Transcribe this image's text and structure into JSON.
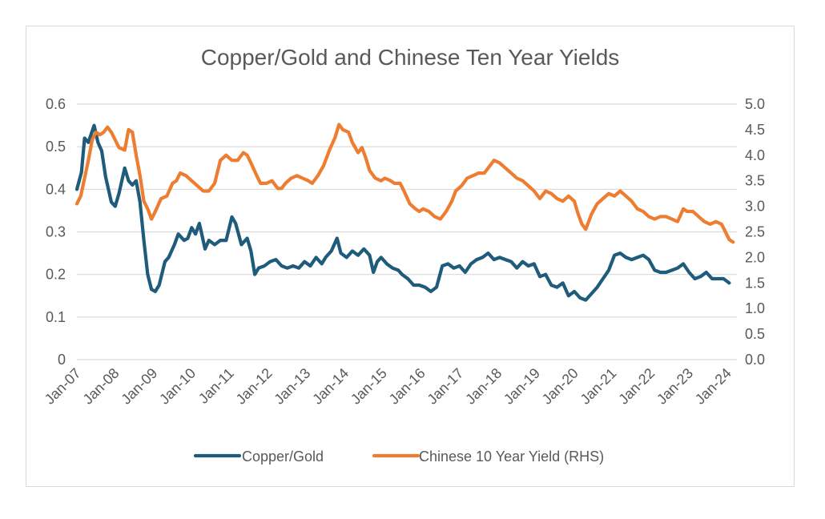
{
  "chart_data": {
    "type": "line",
    "title": "Copper/Gold and Chinese Ten Year Yields",
    "x_tick_labels": [
      "Jan-07",
      "Jan-08",
      "Jan-09",
      "Jan-10",
      "Jan-11",
      "Jan-12",
      "Jan-13",
      "Jan-14",
      "Jan-15",
      "Jan-16",
      "Jan-17",
      "Jan-18",
      "Jan-19",
      "Jan-20",
      "Jan-21",
      "Jan-22",
      "Jan-23",
      "Jan-24"
    ],
    "y_left": {
      "ticks": [
        "0.6",
        "0.5",
        "0.4",
        "0.3",
        "0.2",
        "0.1",
        "0"
      ],
      "range": [
        0,
        0.6
      ]
    },
    "y_right": {
      "ticks": [
        "5.0",
        "4.5",
        "4.0",
        "3.5",
        "3.0",
        "2.5",
        "2.0",
        "1.5",
        "1.0",
        "0.5",
        "0.0"
      ],
      "range": [
        0,
        5.0
      ]
    },
    "grid": true,
    "legend_position": "bottom",
    "series": [
      {
        "name": "Copper/Gold",
        "axis": "left",
        "color": "#1f5b7a",
        "points": [
          [
            2007.0,
            0.4
          ],
          [
            2007.12,
            0.44
          ],
          [
            2007.2,
            0.52
          ],
          [
            2007.3,
            0.51
          ],
          [
            2007.45,
            0.55
          ],
          [
            2007.55,
            0.51
          ],
          [
            2007.65,
            0.49
          ],
          [
            2007.75,
            0.43
          ],
          [
            2007.9,
            0.37
          ],
          [
            2008.0,
            0.36
          ],
          [
            2008.1,
            0.39
          ],
          [
            2008.25,
            0.45
          ],
          [
            2008.35,
            0.42
          ],
          [
            2008.45,
            0.41
          ],
          [
            2008.55,
            0.42
          ],
          [
            2008.65,
            0.37
          ],
          [
            2008.75,
            0.28
          ],
          [
            2008.85,
            0.2
          ],
          [
            2008.95,
            0.165
          ],
          [
            2009.05,
            0.16
          ],
          [
            2009.15,
            0.175
          ],
          [
            2009.3,
            0.23
          ],
          [
            2009.4,
            0.24
          ],
          [
            2009.55,
            0.27
          ],
          [
            2009.65,
            0.295
          ],
          [
            2009.8,
            0.28
          ],
          [
            2009.9,
            0.285
          ],
          [
            2010.0,
            0.31
          ],
          [
            2010.1,
            0.295
          ],
          [
            2010.2,
            0.32
          ],
          [
            2010.35,
            0.26
          ],
          [
            2010.45,
            0.28
          ],
          [
            2010.6,
            0.27
          ],
          [
            2010.75,
            0.28
          ],
          [
            2010.9,
            0.28
          ],
          [
            2011.05,
            0.335
          ],
          [
            2011.15,
            0.32
          ],
          [
            2011.3,
            0.27
          ],
          [
            2011.45,
            0.285
          ],
          [
            2011.55,
            0.255
          ],
          [
            2011.65,
            0.2
          ],
          [
            2011.75,
            0.215
          ],
          [
            2011.9,
            0.22
          ],
          [
            2012.05,
            0.23
          ],
          [
            2012.2,
            0.235
          ],
          [
            2012.35,
            0.22
          ],
          [
            2012.5,
            0.215
          ],
          [
            2012.65,
            0.22
          ],
          [
            2012.8,
            0.215
          ],
          [
            2012.95,
            0.23
          ],
          [
            2013.1,
            0.22
          ],
          [
            2013.25,
            0.24
          ],
          [
            2013.4,
            0.225
          ],
          [
            2013.5,
            0.24
          ],
          [
            2013.65,
            0.255
          ],
          [
            2013.8,
            0.285
          ],
          [
            2013.9,
            0.25
          ],
          [
            2014.05,
            0.24
          ],
          [
            2014.2,
            0.255
          ],
          [
            2014.35,
            0.245
          ],
          [
            2014.5,
            0.26
          ],
          [
            2014.65,
            0.245
          ],
          [
            2014.75,
            0.205
          ],
          [
            2014.85,
            0.23
          ],
          [
            2014.95,
            0.24
          ],
          [
            2015.1,
            0.225
          ],
          [
            2015.25,
            0.215
          ],
          [
            2015.4,
            0.21
          ],
          [
            2015.5,
            0.2
          ],
          [
            2015.65,
            0.19
          ],
          [
            2015.8,
            0.175
          ],
          [
            2015.95,
            0.175
          ],
          [
            2016.1,
            0.17
          ],
          [
            2016.25,
            0.16
          ],
          [
            2016.4,
            0.17
          ],
          [
            2016.55,
            0.22
          ],
          [
            2016.7,
            0.225
          ],
          [
            2016.85,
            0.215
          ],
          [
            2017.0,
            0.22
          ],
          [
            2017.15,
            0.205
          ],
          [
            2017.3,
            0.225
          ],
          [
            2017.45,
            0.235
          ],
          [
            2017.6,
            0.24
          ],
          [
            2017.75,
            0.25
          ],
          [
            2017.9,
            0.235
          ],
          [
            2018.05,
            0.24
          ],
          [
            2018.2,
            0.235
          ],
          [
            2018.35,
            0.23
          ],
          [
            2018.5,
            0.215
          ],
          [
            2018.65,
            0.23
          ],
          [
            2018.8,
            0.22
          ],
          [
            2018.95,
            0.225
          ],
          [
            2019.1,
            0.195
          ],
          [
            2019.25,
            0.2
          ],
          [
            2019.4,
            0.175
          ],
          [
            2019.55,
            0.17
          ],
          [
            2019.7,
            0.18
          ],
          [
            2019.85,
            0.15
          ],
          [
            2020.0,
            0.16
          ],
          [
            2020.15,
            0.145
          ],
          [
            2020.3,
            0.14
          ],
          [
            2020.45,
            0.155
          ],
          [
            2020.6,
            0.17
          ],
          [
            2020.75,
            0.19
          ],
          [
            2020.9,
            0.21
          ],
          [
            2021.05,
            0.245
          ],
          [
            2021.2,
            0.25
          ],
          [
            2021.35,
            0.24
          ],
          [
            2021.5,
            0.235
          ],
          [
            2021.65,
            0.24
          ],
          [
            2021.8,
            0.245
          ],
          [
            2021.95,
            0.235
          ],
          [
            2022.1,
            0.21
          ],
          [
            2022.25,
            0.205
          ],
          [
            2022.4,
            0.205
          ],
          [
            2022.55,
            0.21
          ],
          [
            2022.7,
            0.215
          ],
          [
            2022.85,
            0.225
          ],
          [
            2023.0,
            0.205
          ],
          [
            2023.15,
            0.19
          ],
          [
            2023.3,
            0.195
          ],
          [
            2023.45,
            0.205
          ],
          [
            2023.6,
            0.19
          ],
          [
            2023.75,
            0.19
          ],
          [
            2023.9,
            0.19
          ],
          [
            2024.05,
            0.18
          ]
        ]
      },
      {
        "name": "Chinese 10 Year Yield (RHS)",
        "axis": "right",
        "color": "#ed7d31",
        "points": [
          [
            2007.0,
            3.05
          ],
          [
            2007.1,
            3.2
          ],
          [
            2007.2,
            3.55
          ],
          [
            2007.3,
            3.9
          ],
          [
            2007.4,
            4.3
          ],
          [
            2007.5,
            4.45
          ],
          [
            2007.6,
            4.4
          ],
          [
            2007.7,
            4.45
          ],
          [
            2007.8,
            4.55
          ],
          [
            2007.9,
            4.45
          ],
          [
            2008.0,
            4.3
          ],
          [
            2008.1,
            4.15
          ],
          [
            2008.25,
            4.1
          ],
          [
            2008.35,
            4.5
          ],
          [
            2008.45,
            4.45
          ],
          [
            2008.55,
            4.0
          ],
          [
            2008.65,
            3.6
          ],
          [
            2008.75,
            3.1
          ],
          [
            2008.85,
            2.95
          ],
          [
            2008.95,
            2.75
          ],
          [
            2009.05,
            2.9
          ],
          [
            2009.2,
            3.15
          ],
          [
            2009.35,
            3.2
          ],
          [
            2009.5,
            3.45
          ],
          [
            2009.6,
            3.5
          ],
          [
            2009.7,
            3.65
          ],
          [
            2009.85,
            3.6
          ],
          [
            2010.0,
            3.5
          ],
          [
            2010.15,
            3.4
          ],
          [
            2010.3,
            3.3
          ],
          [
            2010.45,
            3.3
          ],
          [
            2010.6,
            3.45
          ],
          [
            2010.75,
            3.9
          ],
          [
            2010.9,
            4.0
          ],
          [
            2011.05,
            3.9
          ],
          [
            2011.2,
            3.9
          ],
          [
            2011.35,
            4.05
          ],
          [
            2011.45,
            4.0
          ],
          [
            2011.55,
            3.85
          ],
          [
            2011.7,
            3.6
          ],
          [
            2011.8,
            3.45
          ],
          [
            2011.95,
            3.45
          ],
          [
            2012.1,
            3.5
          ],
          [
            2012.25,
            3.35
          ],
          [
            2012.35,
            3.35
          ],
          [
            2012.45,
            3.45
          ],
          [
            2012.6,
            3.55
          ],
          [
            2012.75,
            3.6
          ],
          [
            2012.9,
            3.55
          ],
          [
            2013.05,
            3.5
          ],
          [
            2013.15,
            3.45
          ],
          [
            2013.3,
            3.6
          ],
          [
            2013.45,
            3.8
          ],
          [
            2013.6,
            4.1
          ],
          [
            2013.75,
            4.35
          ],
          [
            2013.85,
            4.6
          ],
          [
            2013.95,
            4.5
          ],
          [
            2014.1,
            4.45
          ],
          [
            2014.2,
            4.25
          ],
          [
            2014.35,
            4.05
          ],
          [
            2014.45,
            4.15
          ],
          [
            2014.55,
            3.95
          ],
          [
            2014.65,
            3.7
          ],
          [
            2014.8,
            3.55
          ],
          [
            2014.95,
            3.5
          ],
          [
            2015.05,
            3.55
          ],
          [
            2015.2,
            3.5
          ],
          [
            2015.3,
            3.45
          ],
          [
            2015.45,
            3.45
          ],
          [
            2015.55,
            3.3
          ],
          [
            2015.7,
            3.05
          ],
          [
            2015.85,
            2.95
          ],
          [
            2015.95,
            2.9
          ],
          [
            2016.05,
            2.95
          ],
          [
            2016.2,
            2.9
          ],
          [
            2016.35,
            2.8
          ],
          [
            2016.5,
            2.75
          ],
          [
            2016.65,
            2.9
          ],
          [
            2016.8,
            3.1
          ],
          [
            2016.9,
            3.3
          ],
          [
            2017.05,
            3.4
          ],
          [
            2017.2,
            3.55
          ],
          [
            2017.35,
            3.6
          ],
          [
            2017.5,
            3.65
          ],
          [
            2017.65,
            3.65
          ],
          [
            2017.8,
            3.8
          ],
          [
            2017.9,
            3.9
          ],
          [
            2018.05,
            3.85
          ],
          [
            2018.2,
            3.75
          ],
          [
            2018.35,
            3.65
          ],
          [
            2018.5,
            3.55
          ],
          [
            2018.65,
            3.5
          ],
          [
            2018.8,
            3.4
          ],
          [
            2018.95,
            3.3
          ],
          [
            2019.1,
            3.15
          ],
          [
            2019.25,
            3.3
          ],
          [
            2019.4,
            3.25
          ],
          [
            2019.55,
            3.15
          ],
          [
            2019.7,
            3.1
          ],
          [
            2019.85,
            3.2
          ],
          [
            2020.0,
            3.1
          ],
          [
            2020.1,
            2.85
          ],
          [
            2020.2,
            2.65
          ],
          [
            2020.3,
            2.55
          ],
          [
            2020.45,
            2.85
          ],
          [
            2020.6,
            3.05
          ],
          [
            2020.75,
            3.15
          ],
          [
            2020.9,
            3.25
          ],
          [
            2021.05,
            3.2
          ],
          [
            2021.2,
            3.3
          ],
          [
            2021.35,
            3.2
          ],
          [
            2021.5,
            3.1
          ],
          [
            2021.65,
            2.95
          ],
          [
            2021.8,
            2.9
          ],
          [
            2021.95,
            2.8
          ],
          [
            2022.1,
            2.75
          ],
          [
            2022.25,
            2.8
          ],
          [
            2022.4,
            2.8
          ],
          [
            2022.55,
            2.75
          ],
          [
            2022.7,
            2.7
          ],
          [
            2022.85,
            2.95
          ],
          [
            2022.95,
            2.9
          ],
          [
            2023.1,
            2.9
          ],
          [
            2023.25,
            2.8
          ],
          [
            2023.4,
            2.7
          ],
          [
            2023.55,
            2.65
          ],
          [
            2023.7,
            2.7
          ],
          [
            2023.85,
            2.65
          ],
          [
            2023.95,
            2.5
          ],
          [
            2024.05,
            2.35
          ],
          [
            2024.15,
            2.3
          ]
        ]
      }
    ]
  }
}
